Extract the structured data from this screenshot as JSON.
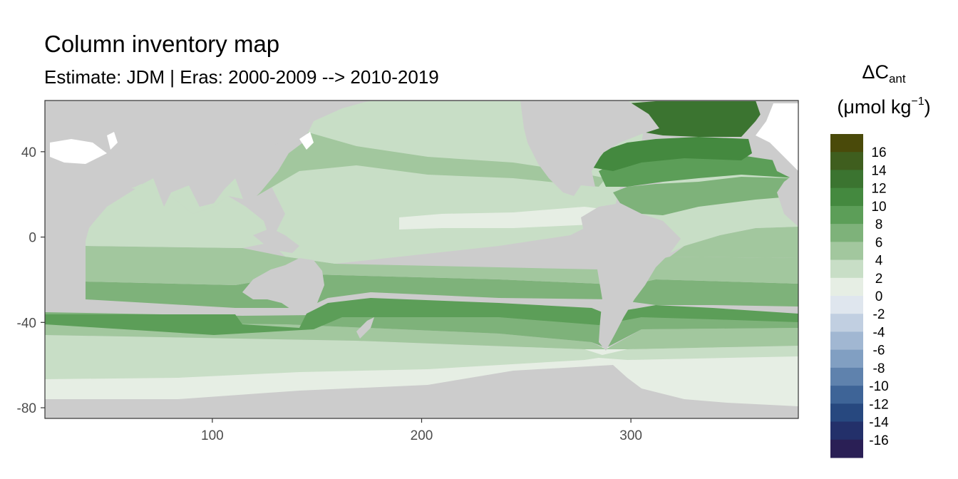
{
  "title": "Column inventory map",
  "subtitle": "Estimate: JDM  | Eras: 2000-2009 --> 2010-2019",
  "legend": {
    "symbol": "ΔC",
    "subscript": "ant",
    "unit_prefix": "(μmol kg",
    "unit_sup": "−1",
    "unit_suffix": ")",
    "breaks": [
      "16",
      "14",
      "12",
      "10",
      "8",
      "6",
      "4",
      "2",
      "0",
      "-2",
      "-4",
      "-6",
      "-8",
      "-10",
      "-12",
      "-14",
      "-16"
    ],
    "colors": [
      "#4a4a0a",
      "#3f5e1e",
      "#3b7430",
      "#44893f",
      "#5c9e58",
      "#7eb27a",
      "#a2c79e",
      "#c8dec6",
      "#e6eee4",
      "#dfe6ee",
      "#c1cfe1",
      "#a1b7d2",
      "#819fc2",
      "#5f82ad",
      "#3e6497",
      "#27487f",
      "#23306a",
      "#2a1f55"
    ]
  },
  "chart_data": {
    "type": "heatmap",
    "title": "Column inventory map",
    "subtitle": "Estimate: JDM  | Eras: 2000-2009 --> 2010-2019",
    "xlim": [
      20,
      380
    ],
    "ylim": [
      -85,
      64
    ],
    "x_ticks": [
      100,
      200,
      300
    ],
    "y_ticks": [
      40,
      0,
      -40,
      -80
    ],
    "grid": false,
    "legend_position": "right",
    "fill_label": "ΔCant (μmol kg−1)",
    "land_color": "#cccccc",
    "missing_color": "#ffffff",
    "zonal_bands": [
      {
        "lat": [
          -80,
          -72
        ],
        "value": 1
      },
      {
        "lat": [
          -72,
          -58
        ],
        "value": 2
      },
      {
        "lat": [
          -58,
          -52
        ],
        "value": 5
      },
      {
        "lat": [
          -52,
          -44
        ],
        "value": 7
      },
      {
        "lat": [
          -44,
          -34
        ],
        "value": 8.5
      },
      {
        "lat": [
          -34,
          -22
        ],
        "value": 7
      },
      {
        "lat": [
          -22,
          -12
        ],
        "value": 5
      },
      {
        "lat": [
          -12,
          20
        ],
        "value": 3
      },
      {
        "lat": [
          20,
          40
        ],
        "value": 4
      },
      {
        "lat": [
          40,
          60
        ],
        "value": 3
      }
    ],
    "north_atlantic": [
      {
        "lat": [
          55,
          64
        ],
        "value": 13
      },
      {
        "lat": [
          40,
          55
        ],
        "value": 11
      },
      {
        "lat": [
          25,
          40
        ],
        "value": 9
      },
      {
        "lat": [
          10,
          25
        ],
        "value": 6
      }
    ]
  }
}
